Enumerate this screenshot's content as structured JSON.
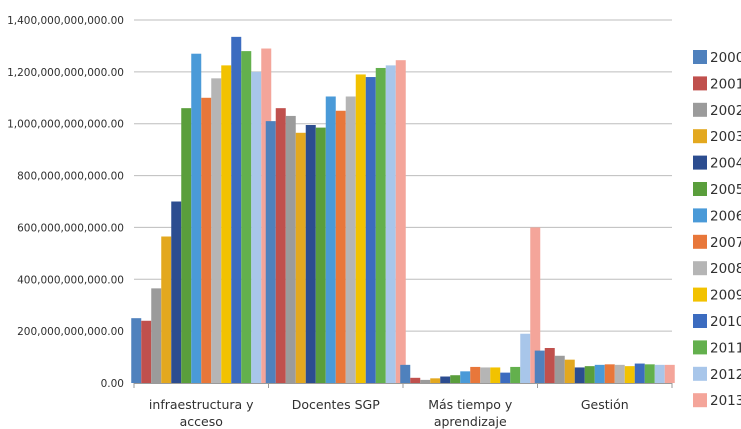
{
  "chart_data": {
    "type": "bar",
    "title": "",
    "xlabel": "",
    "ylabel": "",
    "ylim": [
      0,
      1400000000000
    ],
    "yticks": [
      0,
      200000000000,
      400000000000,
      600000000000,
      800000000000,
      1000000000000,
      1200000000000,
      1400000000000
    ],
    "ytick_labels": [
      "0.00",
      "200,000,000,000.00",
      "400,000,000,000.00",
      "600,000,000,000.00",
      "800,000,000,000.00",
      "1,000,000,000,000.00",
      "1,200,000,000,000.00",
      "1,400,000,000,000.00"
    ],
    "grid": true,
    "legend_position": "right",
    "categories": [
      [
        "infraestructura y",
        "acceso"
      ],
      [
        "Docentes SGP"
      ],
      [
        "Más tiempo y",
        "aprendizaje"
      ],
      [
        "Gestión"
      ]
    ],
    "series": [
      {
        "name": "2000",
        "color": "#4f81bd",
        "values": [
          250000000000,
          1010000000000,
          70000000000,
          125000000000
        ]
      },
      {
        "name": "2001",
        "color": "#c0504d",
        "values": [
          240000000000,
          1060000000000,
          20000000000,
          135000000000
        ]
      },
      {
        "name": "2002",
        "color": "#9b9b9b",
        "values": [
          365000000000,
          1030000000000,
          12000000000,
          105000000000
        ]
      },
      {
        "name": "2003",
        "color": "#e3a81f",
        "values": [
          565000000000,
          965000000000,
          18000000000,
          90000000000
        ]
      },
      {
        "name": "2004",
        "color": "#2c4d90",
        "values": [
          700000000000,
          995000000000,
          25000000000,
          60000000000
        ]
      },
      {
        "name": "2005",
        "color": "#5a9e3c",
        "values": [
          1060000000000,
          985000000000,
          30000000000,
          65000000000
        ]
      },
      {
        "name": "2006",
        "color": "#4a9ad8",
        "values": [
          1270000000000,
          1105000000000,
          45000000000,
          70000000000
        ]
      },
      {
        "name": "2007",
        "color": "#e8773a",
        "values": [
          1100000000000,
          1050000000000,
          62000000000,
          72000000000
        ]
      },
      {
        "name": "2008",
        "color": "#b5b5b5",
        "values": [
          1175000000000,
          1105000000000,
          60000000000,
          70000000000
        ]
      },
      {
        "name": "2009",
        "color": "#f2c200",
        "values": [
          1225000000000,
          1190000000000,
          60000000000,
          65000000000
        ]
      },
      {
        "name": "2010",
        "color": "#3c6cc0",
        "values": [
          1335000000000,
          1180000000000,
          40000000000,
          75000000000
        ]
      },
      {
        "name": "2011",
        "color": "#63b04d",
        "values": [
          1280000000000,
          1215000000000,
          62000000000,
          72000000000
        ]
      },
      {
        "name": "2012",
        "color": "#a8c6ea",
        "values": [
          1200000000000,
          1225000000000,
          190000000000,
          70000000000
        ]
      },
      {
        "name": "2013",
        "color": "#f4a59a",
        "values": [
          1290000000000,
          1245000000000,
          600000000000,
          70000000000
        ]
      }
    ]
  }
}
